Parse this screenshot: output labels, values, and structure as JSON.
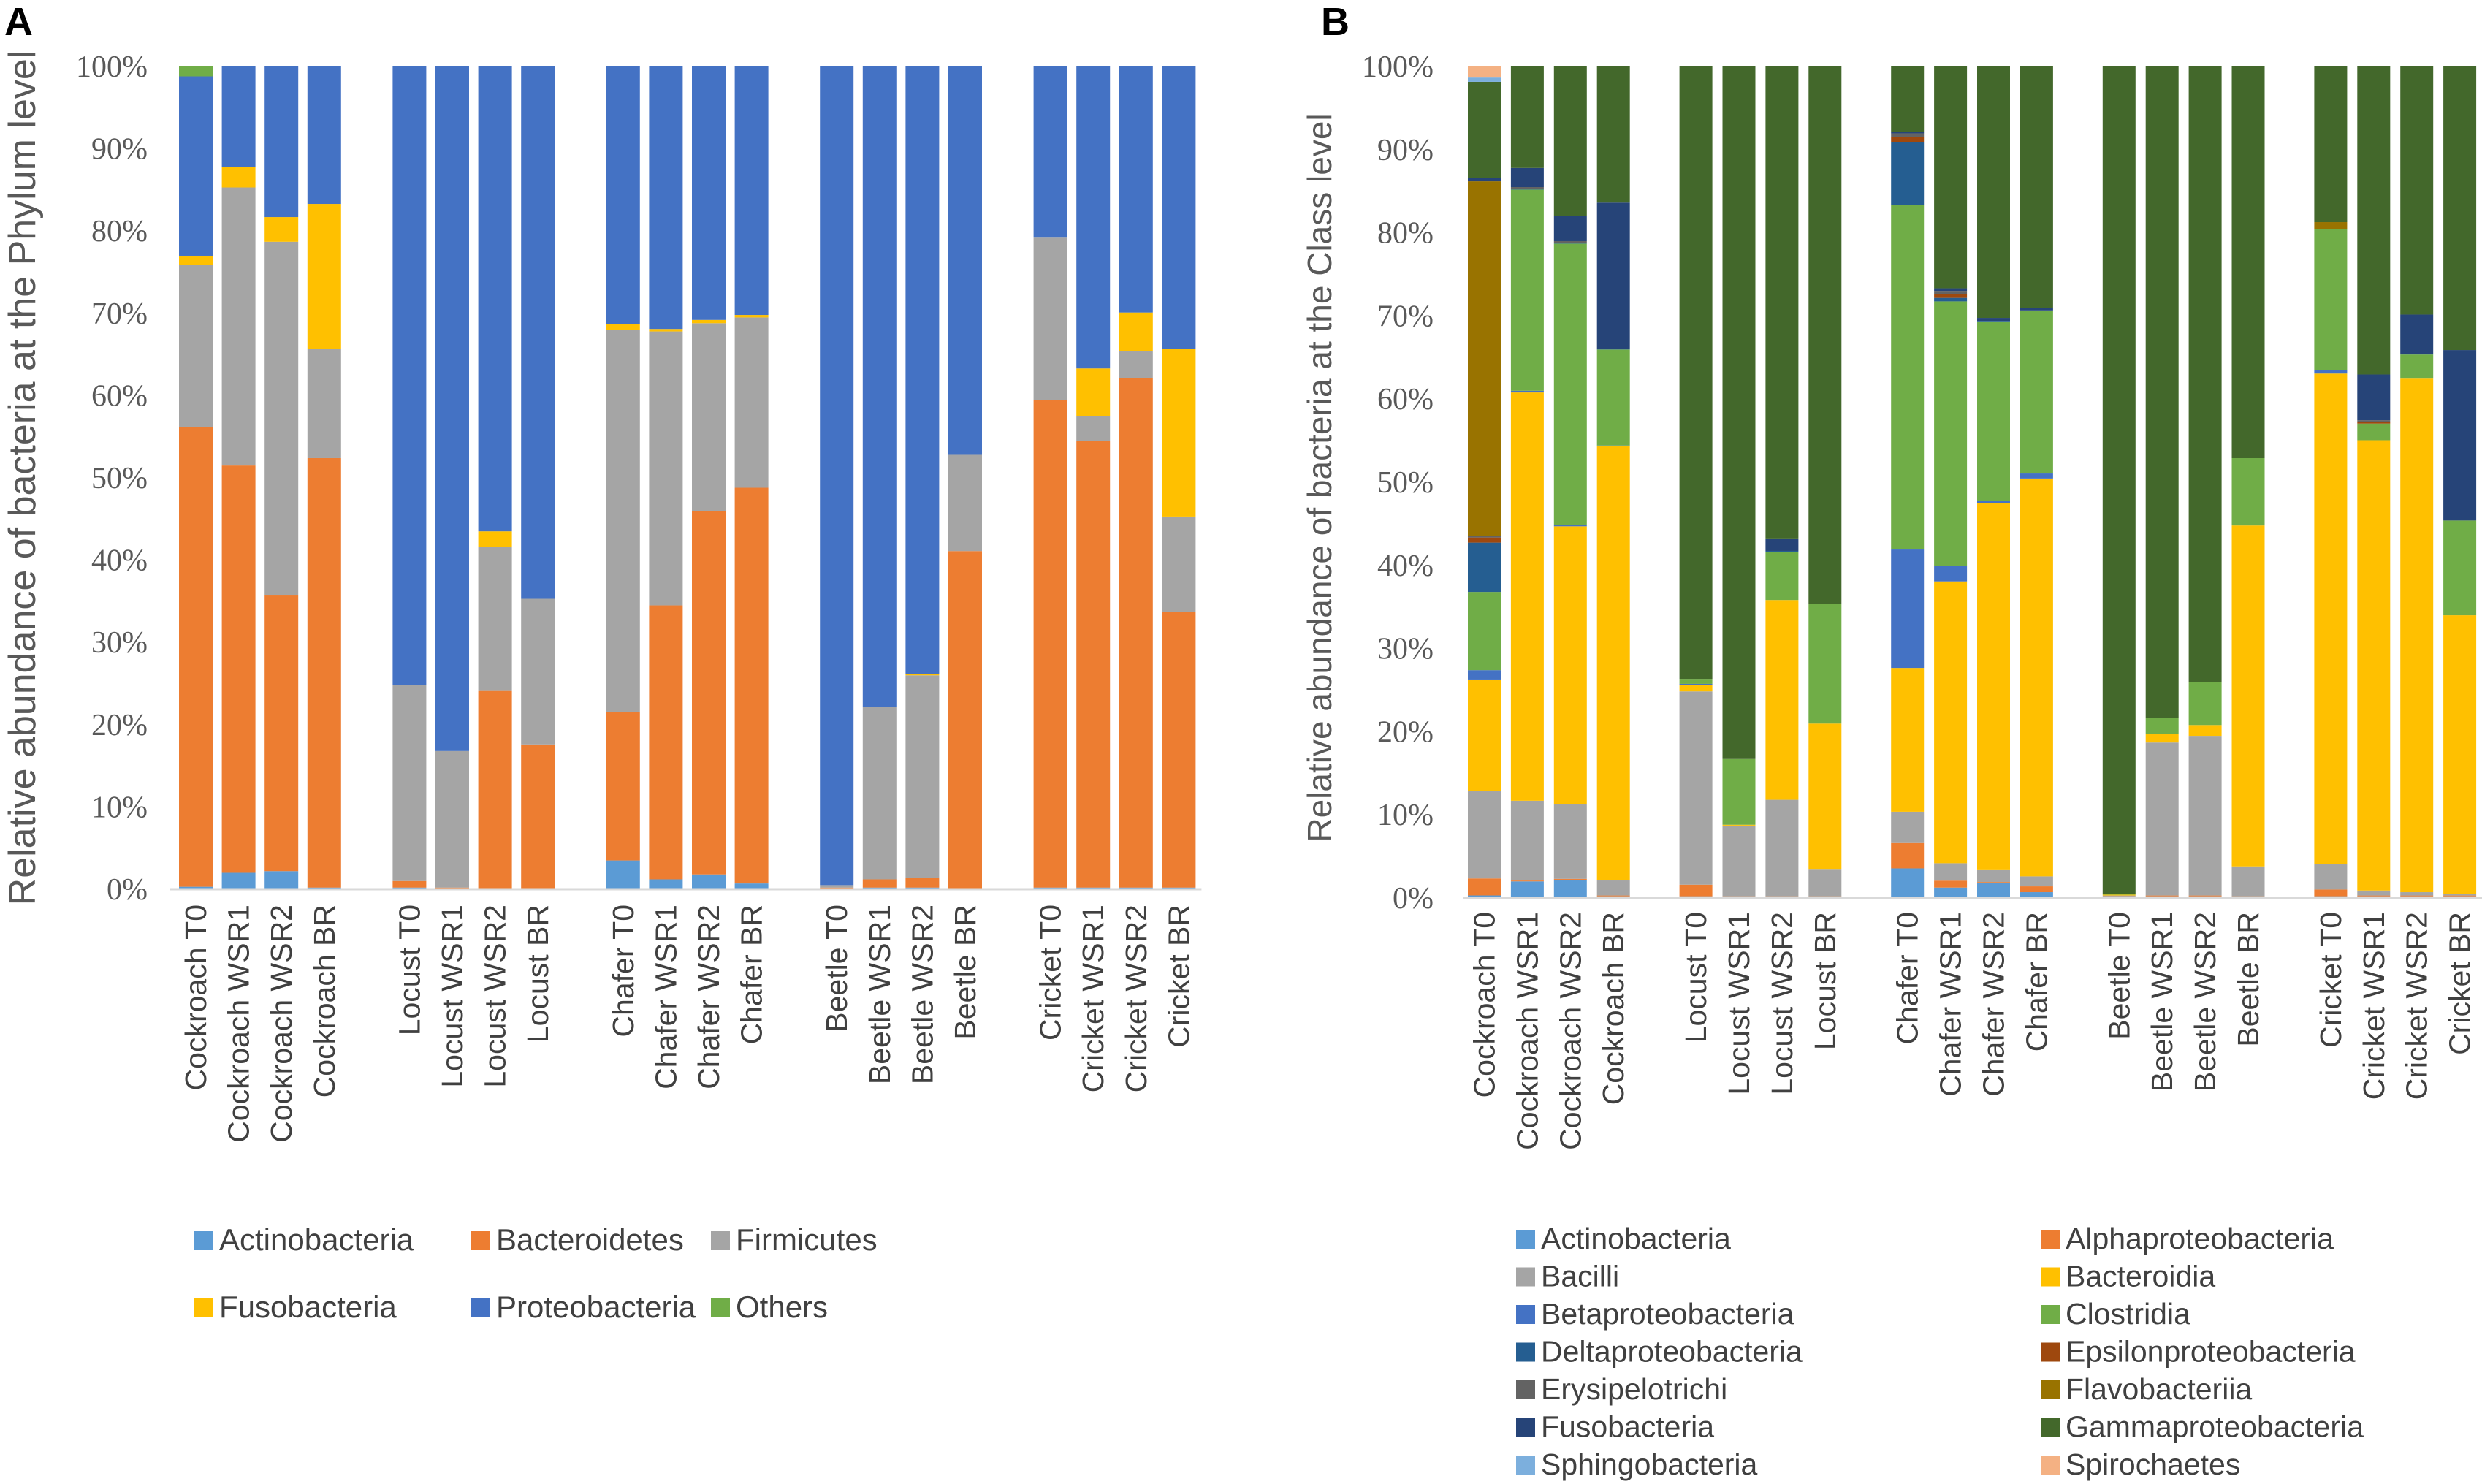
{
  "panels": [
    {
      "label": "A",
      "chart_data": {
        "type": "bar",
        "stacked": true,
        "ylabel": "Relative abundance of bacteria at the Phylum level",
        "ylim": [
          0,
          100
        ],
        "yticks": [
          "0%",
          "10%",
          "20%",
          "30%",
          "40%",
          "50%",
          "60%",
          "70%",
          "80%",
          "90%",
          "100%"
        ],
        "grid": false,
        "legend": "bottom",
        "group_sizes": [
          4,
          4,
          4,
          4,
          4
        ],
        "categories": [
          "Cockroach T0",
          "Cockroach WSR1",
          "Cockroach WSR2",
          "Cockroach BR",
          "Locust T0",
          "Locust WSR1",
          "Locust WSR2",
          "Locust BR",
          "Chafer T0",
          "Chafer WSR1",
          "Chafer WSR2",
          "Chafer BR",
          "Beetle T0",
          "Beetle WSR1",
          "Beetle WSR2",
          "Beetle BR",
          "Cricket T0",
          "Cricket WSR1",
          "Cricket WSR2",
          "Cricket BR"
        ],
        "series": [
          {
            "name": "Actinobacteria",
            "color": "#5B9BD5",
            "values": [
              0.3,
              2.0,
              2.2,
              0.2,
              0.2,
              0.1,
              0.1,
              0.1,
              3.5,
              1.2,
              1.8,
              0.7,
              0.1,
              0.2,
              0.2,
              0.1,
              0.2,
              0.2,
              0.2,
              0.2
            ]
          },
          {
            "name": "Bacteroidetes",
            "color": "#ED7D31",
            "values": [
              55.9,
              49.5,
              33.5,
              52.2,
              0.8,
              0.1,
              24.0,
              17.5,
              18.0,
              33.3,
              44.2,
              48.1,
              0.1,
              1.0,
              1.2,
              41.0,
              59.3,
              54.3,
              61.9,
              33.5
            ]
          },
          {
            "name": "Firmicutes",
            "color": "#A5A5A5",
            "values": [
              19.7,
              33.8,
              43.0,
              13.3,
              23.8,
              16.6,
              17.5,
              17.7,
              46.5,
              33.3,
              22.8,
              20.7,
              0.3,
              21.0,
              24.6,
              11.7,
              19.7,
              3.0,
              3.3,
              11.6
            ]
          },
          {
            "name": "Fusobacteria",
            "color": "#FFC000",
            "values": [
              1.1,
              2.5,
              3.0,
              17.6,
              0.0,
              0.0,
              1.9,
              0.0,
              0.7,
              0.3,
              0.4,
              0.3,
              0.0,
              0.0,
              0.2,
              0.0,
              0.0,
              5.8,
              4.7,
              20.4
            ]
          },
          {
            "name": "Proteobacteria",
            "color": "#4472C4",
            "values": [
              21.8,
              12.2,
              18.3,
              16.7,
              75.2,
              83.2,
              56.5,
              64.7,
              31.3,
              31.9,
              30.8,
              30.2,
              99.5,
              77.8,
              73.8,
              47.2,
              20.8,
              36.7,
              29.9,
              34.3
            ]
          },
          {
            "name": "Others",
            "color": "#70AD47",
            "values": [
              1.2,
              0.0,
              0.0,
              0.0,
              0.0,
              0.0,
              0.0,
              0.0,
              0.0,
              0.0,
              0.0,
              0.0,
              0.0,
              0.0,
              0.0,
              0.0,
              0.0,
              0.0,
              0.0,
              0.0
            ]
          }
        ]
      }
    },
    {
      "label": "B",
      "chart_data": {
        "type": "bar",
        "stacked": true,
        "ylabel": "Relative abundance of bacteria at the Class level",
        "ylim": [
          0,
          100
        ],
        "yticks": [
          "0%",
          "10%",
          "20%",
          "30%",
          "40%",
          "50%",
          "60%",
          "70%",
          "80%",
          "90%",
          "100%"
        ],
        "grid": false,
        "legend": "bottom",
        "group_sizes": [
          4,
          4,
          4,
          4,
          4
        ],
        "categories": [
          "Cockroach T0",
          "Cockroach WSR1",
          "Cockroach WSR2",
          "Cockroach BR",
          "Locust T0",
          "Locust WSR1",
          "Locust WSR2",
          "Locust BR",
          "Chafer T0",
          "Chafer WSR1",
          "Chafer WSR2",
          "Chafer BR",
          "Beetle T0",
          "Beetle WSR1",
          "Beetle WSR2",
          "Beetle BR",
          "Cricket T0",
          "Cricket WSR1",
          "Cricket WSR2",
          "Cricket BR"
        ],
        "series": [
          {
            "name": "Actinobacteria",
            "color": "#5B9BD5",
            "values": [
              0.3,
              2.0,
              2.2,
              0.2,
              0.2,
              0.1,
              0.1,
              0.1,
              3.5,
              1.2,
              1.8,
              0.7,
              0.1,
              0.2,
              0.2,
              0.1,
              0.2,
              0.2,
              0.2,
              0.2
            ]
          },
          {
            "name": "Alphaproteobacteria",
            "color": "#ED7D31",
            "values": [
              2.0,
              0.1,
              0.1,
              0.1,
              1.4,
              0.1,
              0.1,
              0.1,
              3.0,
              0.8,
              0.1,
              0.7,
              0.1,
              0.1,
              0.1,
              0.1,
              0.8,
              0.1,
              0.1,
              0.1
            ]
          },
          {
            "name": "Bacilli",
            "color": "#A5A5A5",
            "values": [
              10.3,
              9.6,
              9.0,
              1.8,
              23.2,
              8.5,
              11.6,
              3.3,
              3.7,
              2.0,
              1.5,
              1.2,
              0.1,
              18.4,
              19.2,
              3.6,
              3.0,
              0.6,
              0.4,
              0.2
            ]
          },
          {
            "name": "Bacteroidia",
            "color": "#FFC000",
            "values": [
              13.1,
              49.1,
              33.4,
              52.0,
              0.8,
              0.1,
              24.0,
              17.5,
              17.0,
              32.4,
              43.6,
              47.8,
              0.1,
              1.0,
              1.3,
              41.0,
              58.0,
              54.1,
              61.7,
              33.5
            ]
          },
          {
            "name": "Betaproteobacteria",
            "color": "#4472C4",
            "values": [
              1.1,
              0.2,
              0.2,
              0.1,
              0.1,
              0.0,
              0.0,
              0.0,
              14.0,
              1.8,
              0.2,
              0.6,
              0.0,
              0.0,
              0.0,
              0.0,
              0.4,
              0.0,
              0.0,
              0.0
            ]
          },
          {
            "name": "Clostridia",
            "color": "#70AD47",
            "values": [
              9.2,
              24.2,
              33.8,
              11.5,
              0.6,
              7.9,
              5.8,
              14.4,
              40.7,
              30.4,
              21.3,
              19.5,
              0.1,
              2.0,
              5.2,
              8.1,
              16.7,
              2.0,
              2.9,
              11.4
            ]
          },
          {
            "name": "Deltaproteobacteria",
            "color": "#255E91",
            "values": [
              5.8,
              0.1,
              0.1,
              0.1,
              0.0,
              0.0,
              0.1,
              0.0,
              7.5,
              0.4,
              0.1,
              0.1,
              0.0,
              0.0,
              0.0,
              0.0,
              0.0,
              0.0,
              0.1,
              0.0
            ]
          },
          {
            "name": "Epsilonproteobacteria",
            "color": "#9E480E",
            "values": [
              0.6,
              0.0,
              0.0,
              0.0,
              0.0,
              0.0,
              0.0,
              0.0,
              0.6,
              0.4,
              0.0,
              0.0,
              0.0,
              0.0,
              0.0,
              0.0,
              0.0,
              0.2,
              0.0,
              0.0
            ]
          },
          {
            "name": "Erysipelotrichi",
            "color": "#636363",
            "values": [
              0.2,
              0.2,
              0.2,
              0.0,
              0.0,
              0.0,
              0.0,
              0.0,
              0.4,
              0.4,
              0.0,
              0.0,
              0.0,
              0.0,
              0.0,
              0.0,
              0.0,
              0.2,
              0.0,
              0.0
            ]
          },
          {
            "name": "Flavobacteriia",
            "color": "#997300",
            "values": [
              41.7,
              0.0,
              0.0,
              0.0,
              0.0,
              0.0,
              0.0,
              0.0,
              0.0,
              0.0,
              0.0,
              0.0,
              0.0,
              0.0,
              0.0,
              0.0,
              0.8,
              0.0,
              0.0,
              0.0
            ]
          },
          {
            "name": "Fusobacteria",
            "color": "#264478",
            "values": [
              0.4,
              2.3,
              3.0,
              17.5,
              0.0,
              0.0,
              1.5,
              0.0,
              0.2,
              0.3,
              0.4,
              0.3,
              0.0,
              0.0,
              0.0,
              0.0,
              0.0,
              5.5,
              4.7,
              20.5
            ]
          },
          {
            "name": "Gammaproteobacteria",
            "color": "#43682B",
            "values": [
              11.3,
              12.2,
              18.0,
              16.3,
              73.5,
              83.2,
              56.7,
              64.7,
              7.7,
              25.5,
              29.9,
              29.0,
              99.6,
              78.3,
              74.0,
              47.1,
              18.4,
              37.0,
              29.8,
              34.1
            ]
          },
          {
            "name": "Sphingobacteria",
            "color": "#7CAFDD",
            "values": [
              0.5,
              0.0,
              0.0,
              0.0,
              0.0,
              0.0,
              0.0,
              0.0,
              0.0,
              0.0,
              0.0,
              0.0,
              0.0,
              0.0,
              0.0,
              0.0,
              0.0,
              0.0,
              0.0,
              0.0
            ]
          },
          {
            "name": "Spirochaetes",
            "color": "#F4B183",
            "values": [
              1.3,
              0.0,
              0.0,
              0.0,
              0.0,
              0.0,
              0.0,
              0.0,
              0.0,
              0.0,
              0.0,
              0.0,
              0.0,
              0.0,
              0.0,
              0.0,
              0.0,
              0.0,
              0.0,
              0.0
            ]
          }
        ]
      }
    }
  ]
}
